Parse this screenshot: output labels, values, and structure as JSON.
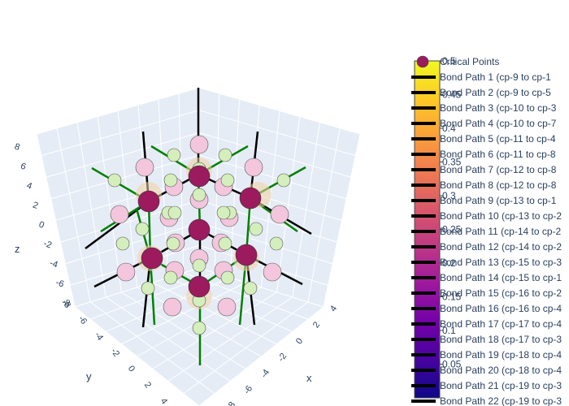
{
  "chart_data": {
    "type": "scatter3d",
    "axes": {
      "x": {
        "title": "x",
        "ticks": [
          -8,
          -6,
          -4,
          -2,
          0,
          2,
          4
        ]
      },
      "y": {
        "title": "y",
        "ticks": [
          -8,
          -6,
          -4,
          -2,
          0,
          2,
          4
        ]
      },
      "z": {
        "title": "z",
        "ticks": [
          -8,
          -6,
          -4,
          -2,
          0,
          2,
          4,
          6,
          8
        ]
      }
    },
    "colorbar": {
      "range": [
        0,
        0.5
      ],
      "ticks": [
        "0.05",
        "0.1",
        "0.15",
        "0.2",
        "0.25",
        "0.3",
        "0.35",
        "0.4",
        "0.45",
        "0.5"
      ],
      "colorscale": [
        "#0d0887",
        "#46039f",
        "#7201a8",
        "#9c179e",
        "#bd3786",
        "#d8576b",
        "#ed7953",
        "#fb9f3a",
        "#fdca26",
        "#f0f921"
      ]
    },
    "legend": {
      "placement": "top-right",
      "entries": [
        "Critical Points",
        "Bond Path 1 (cp-9 to cp-1",
        "Bond Path 2 (cp-9 to cp-5",
        "Bond Path 3 (cp-10 to cp-3",
        "Bond Path 4 (cp-10 to cp-7",
        "Bond Path 5 (cp-11 to cp-4",
        "Bond Path 6 (cp-11 to cp-8",
        "Bond Path 7 (cp-12 to cp-8",
        "Bond Path 8 (cp-12 to cp-8",
        "Bond Path 9 (cp-13 to cp-1",
        "Bond Path 10 (cp-13 to cp-2",
        "Bond Path 11 (cp-14 to cp-2",
        "Bond Path 12 (cp-14 to cp-2",
        "Bond Path 13 (cp-15 to cp-3",
        "Bond Path 14 (cp-15 to cp-1",
        "Bond Path 15 (cp-16 to cp-2",
        "Bond Path 16 (cp-16 to cp-4",
        "Bond Path 17 (cp-17 to cp-4",
        "Bond Path 18 (cp-17 to cp-3",
        "Bond Path 19 (cp-18 to cp-4",
        "Bond Path 20 (cp-18 to cp-4",
        "Bond Path 21 (cp-19 to cp-3",
        "Bond Path 22 (cp-19 to cp-3"
      ]
    },
    "colors": {
      "bond_black": "#000000",
      "bond_green": "#008000",
      "cp_strong": "#9c1a5e",
      "cp_pink": "#f3c6dd",
      "cp_green": "#d4eebc",
      "cp_glow": "#f3d2a3",
      "scene_bg": "#e5ecf6"
    }
  }
}
